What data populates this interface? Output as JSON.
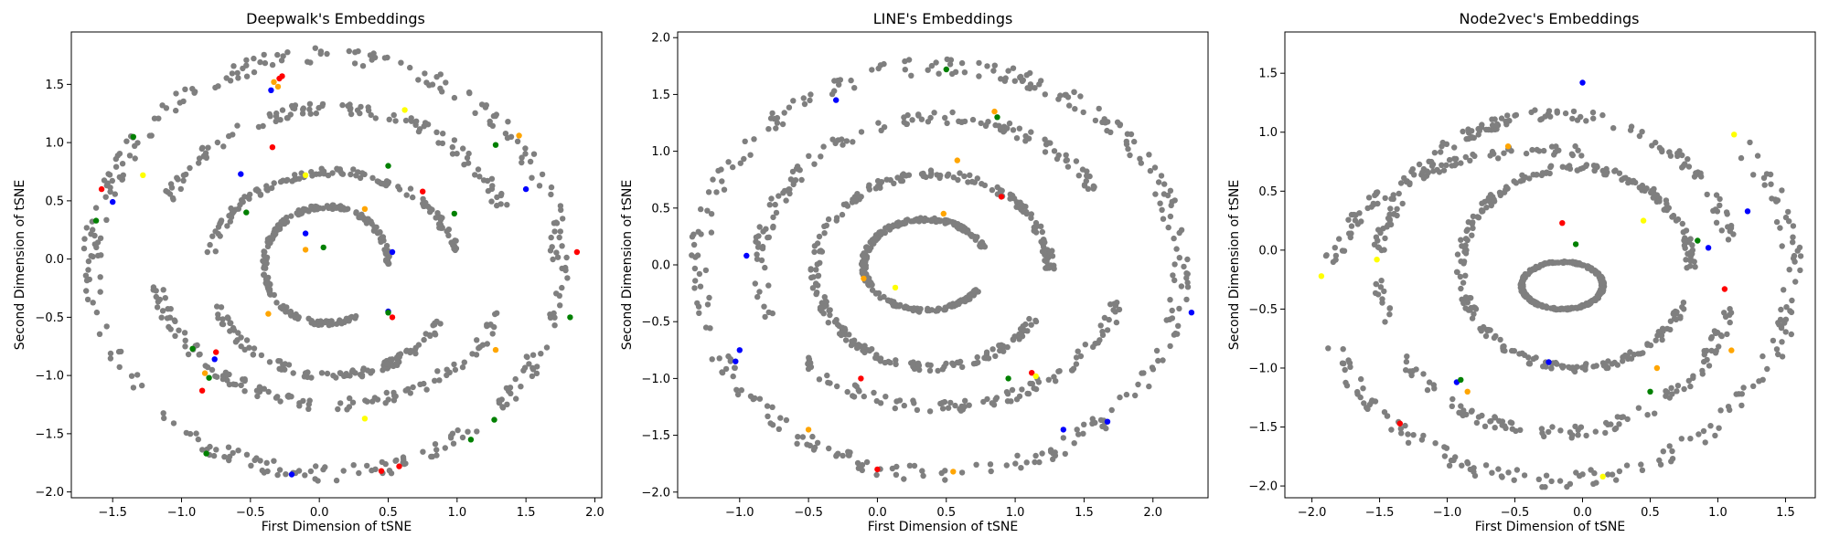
{
  "chart_data": [
    {
      "type": "scatter",
      "title": "Deepwalk's Embeddings",
      "xlabel": "First Dimension of tSNE",
      "ylabel": "Second Dimension of tSNE",
      "xlim": [
        -1.8,
        2.05
      ],
      "ylim": [
        -2.05,
        1.95
      ],
      "xticks": [
        -1.5,
        -1.0,
        -0.5,
        0.0,
        0.5,
        1.0,
        1.5,
        2.0
      ],
      "yticks": [
        -2.0,
        -1.5,
        -1.0,
        -0.5,
        0.0,
        0.5,
        1.0,
        1.5
      ],
      "xtick_labels": [
        "−1.5",
        "−1.0",
        "−0.5",
        "0.0",
        "0.5",
        "1.0",
        "1.5",
        "2.0"
      ],
      "ytick_labels": [
        "−2.0",
        "−1.5",
        "−1.0",
        "−0.5",
        "0.0",
        "0.5",
        "1.0",
        "1.5"
      ],
      "grid": false,
      "base_color": "#7f7f7f",
      "gray_strands": [
        {
          "cx": 0.05,
          "cy": -0.05,
          "r": 1.85,
          "a0": 0,
          "a1": 360,
          "rx": 1.7,
          "ry": 1.8
        },
        {
          "cx": 0.1,
          "cy": 0.0,
          "r": 1.35,
          "a0": 20,
          "a1": 160,
          "rx": 1.3,
          "ry": 1.3
        },
        {
          "cx": 0.1,
          "cy": 0.0,
          "r": 1.35,
          "a0": 190,
          "a1": 340,
          "rx": 1.3,
          "ry": 1.25
        },
        {
          "cx": 0.1,
          "cy": -0.1,
          "r": 0.9,
          "a0": 10,
          "a1": 170,
          "rx": 0.9,
          "ry": 0.85
        },
        {
          "cx": 0.1,
          "cy": -0.1,
          "r": 0.9,
          "a0": 200,
          "a1": 330,
          "rx": 0.9,
          "ry": 0.9
        },
        {
          "cx": 0.05,
          "cy": -0.05,
          "r": 0.45,
          "a0": 0,
          "a1": 300,
          "rx": 0.45,
          "ry": 0.5
        }
      ],
      "colored_points": [
        {
          "x": -1.28,
          "y": 0.72,
          "color": "#ffff00"
        },
        {
          "x": -1.5,
          "y": 0.49,
          "color": "#0000ff"
        },
        {
          "x": -1.62,
          "y": 0.33,
          "color": "#008000"
        },
        {
          "x": -1.58,
          "y": 0.6,
          "color": "#ff0000"
        },
        {
          "x": -1.35,
          "y": 1.05,
          "color": "#008000"
        },
        {
          "x": -0.33,
          "y": 1.52,
          "color": "#ffa500"
        },
        {
          "x": -0.3,
          "y": 1.48,
          "color": "#ffa500"
        },
        {
          "x": -0.29,
          "y": 1.55,
          "color": "#ff0000"
        },
        {
          "x": -0.27,
          "y": 1.57,
          "color": "#ff0000"
        },
        {
          "x": -0.35,
          "y": 1.45,
          "color": "#0000ff"
        },
        {
          "x": -0.34,
          "y": 0.96,
          "color": "#ff0000"
        },
        {
          "x": -0.57,
          "y": 0.73,
          "color": "#0000ff"
        },
        {
          "x": -0.1,
          "y": 0.72,
          "color": "#ffff00"
        },
        {
          "x": 0.62,
          "y": 1.28,
          "color": "#ffff00"
        },
        {
          "x": 1.45,
          "y": 1.06,
          "color": "#ffa500"
        },
        {
          "x": 1.28,
          "y": 0.98,
          "color": "#008000"
        },
        {
          "x": 1.5,
          "y": 0.6,
          "color": "#0000ff"
        },
        {
          "x": 1.87,
          "y": 0.06,
          "color": "#ff0000"
        },
        {
          "x": 1.82,
          "y": -0.5,
          "color": "#008000"
        },
        {
          "x": 0.5,
          "y": 0.8,
          "color": "#008000"
        },
        {
          "x": 0.75,
          "y": 0.58,
          "color": "#ff0000"
        },
        {
          "x": 0.98,
          "y": 0.39,
          "color": "#008000"
        },
        {
          "x": 0.33,
          "y": 0.43,
          "color": "#ffa500"
        },
        {
          "x": -0.53,
          "y": 0.4,
          "color": "#008000"
        },
        {
          "x": -0.1,
          "y": 0.22,
          "color": "#0000ff"
        },
        {
          "x": -0.1,
          "y": 0.08,
          "color": "#ffa500"
        },
        {
          "x": 0.03,
          "y": 0.1,
          "color": "#008000"
        },
        {
          "x": 0.53,
          "y": 0.06,
          "color": "#0000ff"
        },
        {
          "x": 0.5,
          "y": -0.45,
          "color": "#0000ff"
        },
        {
          "x": 0.53,
          "y": -0.5,
          "color": "#ff0000"
        },
        {
          "x": 0.5,
          "y": -0.46,
          "color": "#008000"
        },
        {
          "x": -0.37,
          "y": -0.47,
          "color": "#ffa500"
        },
        {
          "x": -0.92,
          "y": -0.77,
          "color": "#008000"
        },
        {
          "x": -0.75,
          "y": -0.8,
          "color": "#ff0000"
        },
        {
          "x": -0.76,
          "y": -0.86,
          "color": "#0000ff"
        },
        {
          "x": -0.83,
          "y": -0.98,
          "color": "#ffa500"
        },
        {
          "x": -0.8,
          "y": -1.02,
          "color": "#008000"
        },
        {
          "x": -0.85,
          "y": -1.13,
          "color": "#ff0000"
        },
        {
          "x": -0.82,
          "y": -1.67,
          "color": "#008000"
        },
        {
          "x": -0.2,
          "y": -1.85,
          "color": "#0000ff"
        },
        {
          "x": 0.33,
          "y": -1.37,
          "color": "#ffff00"
        },
        {
          "x": 0.45,
          "y": -1.82,
          "color": "#ff0000"
        },
        {
          "x": 0.58,
          "y": -1.78,
          "color": "#ff0000"
        },
        {
          "x": 1.1,
          "y": -1.55,
          "color": "#008000"
        },
        {
          "x": 1.27,
          "y": -1.38,
          "color": "#008000"
        },
        {
          "x": 1.28,
          "y": -0.78,
          "color": "#ffa500"
        }
      ]
    },
    {
      "type": "scatter",
      "title": "LINE's Embeddings",
      "xlabel": "First Dimension of tSNE",
      "ylabel": "Second Dimension of tSNE",
      "xlim": [
        -1.45,
        2.4
      ],
      "ylim": [
        -2.05,
        2.05
      ],
      "xticks": [
        -1.0,
        -0.5,
        0.0,
        0.5,
        1.0,
        1.5,
        2.0
      ],
      "yticks": [
        -2.0,
        -1.5,
        -1.0,
        -0.5,
        0.0,
        0.5,
        1.0,
        1.5,
        2.0
      ],
      "xtick_labels": [
        "−1.0",
        "−0.5",
        "0.0",
        "0.5",
        "1.0",
        "1.5",
        "2.0"
      ],
      "ytick_labels": [
        "−2.0",
        "−1.5",
        "−1.0",
        "−0.5",
        "0.0",
        "0.5",
        "1.0",
        "1.5",
        "2.0"
      ],
      "grid": false,
      "base_color": "#7f7f7f",
      "gray_strands": [
        {
          "cx": 0.45,
          "cy": -0.05,
          "r": 1.8,
          "a0": 0,
          "a1": 360,
          "rx": 1.75,
          "ry": 1.8
        },
        {
          "cx": 0.45,
          "cy": 0.0,
          "r": 1.3,
          "a0": 30,
          "a1": 200,
          "rx": 1.3,
          "ry": 1.3
        },
        {
          "cx": 0.45,
          "cy": 0.0,
          "r": 1.3,
          "a0": 220,
          "a1": 350,
          "rx": 1.35,
          "ry": 1.25
        },
        {
          "cx": 0.4,
          "cy": -0.05,
          "r": 0.85,
          "a0": 0,
          "a1": 330,
          "rx": 0.85,
          "ry": 0.85
        },
        {
          "cx": 0.35,
          "cy": 0.0,
          "r": 0.4,
          "a0": 20,
          "a1": 330,
          "rx": 0.45,
          "ry": 0.4
        }
      ],
      "colored_points": [
        {
          "x": 0.5,
          "y": 1.72,
          "color": "#008000"
        },
        {
          "x": -0.3,
          "y": 1.45,
          "color": "#0000ff"
        },
        {
          "x": 0.85,
          "y": 1.35,
          "color": "#ffa500"
        },
        {
          "x": 0.87,
          "y": 1.3,
          "color": "#008000"
        },
        {
          "x": 0.58,
          "y": 0.92,
          "color": "#ffa500"
        },
        {
          "x": 0.9,
          "y": 0.6,
          "color": "#ff0000"
        },
        {
          "x": 0.48,
          "y": 0.45,
          "color": "#ffa500"
        },
        {
          "x": -0.95,
          "y": 0.08,
          "color": "#0000ff"
        },
        {
          "x": -0.1,
          "y": -0.12,
          "color": "#ffa500"
        },
        {
          "x": 0.13,
          "y": -0.2,
          "color": "#ffff00"
        },
        {
          "x": -1.0,
          "y": -0.75,
          "color": "#0000ff"
        },
        {
          "x": -1.03,
          "y": -0.85,
          "color": "#0000ff"
        },
        {
          "x": -0.5,
          "y": -1.45,
          "color": "#ffa500"
        },
        {
          "x": -0.12,
          "y": -1.0,
          "color": "#ff0000"
        },
        {
          "x": 0.95,
          "y": -1.0,
          "color": "#008000"
        },
        {
          "x": 1.12,
          "y": -0.95,
          "color": "#ff0000"
        },
        {
          "x": 1.15,
          "y": -0.98,
          "color": "#ffff00"
        },
        {
          "x": 1.35,
          "y": -1.45,
          "color": "#0000ff"
        },
        {
          "x": 1.67,
          "y": -1.38,
          "color": "#0000ff"
        },
        {
          "x": 2.28,
          "y": -0.42,
          "color": "#0000ff"
        },
        {
          "x": 0.55,
          "y": -1.82,
          "color": "#ffa500"
        },
        {
          "x": 0.0,
          "y": -1.8,
          "color": "#ff0000"
        }
      ]
    },
    {
      "type": "scatter",
      "title": "Node2vec's Embeddings",
      "xlabel": "First Dimension of tSNE",
      "ylabel": "Second Dimension of tSNE",
      "xlim": [
        -2.2,
        1.72
      ],
      "ylim": [
        -2.1,
        1.85
      ],
      "xticks": [
        -2.0,
        -1.5,
        -1.0,
        -0.5,
        0.0,
        0.5,
        1.0,
        1.5
      ],
      "yticks": [
        -2.0,
        -1.5,
        -1.0,
        -0.5,
        0.0,
        0.5,
        1.0,
        1.5
      ],
      "xtick_labels": [
        "−2.0",
        "−1.5",
        "−1.0",
        "−0.5",
        "0.0",
        "0.5",
        "1.0",
        "1.5"
      ],
      "ytick_labels": [
        "−2.0",
        "−1.5",
        "−1.0",
        "−0.5",
        "0.0",
        "0.5",
        "1.0",
        "1.5"
      ],
      "grid": false,
      "base_color": "#7f7f7f",
      "gray_strands": [
        {
          "cx": -0.2,
          "cy": -0.2,
          "r": 1.75,
          "a0": 200,
          "a1": 400,
          "rx": 1.75,
          "ry": 1.75
        },
        {
          "cx": -0.25,
          "cy": -0.2,
          "r": 1.75,
          "a0": 80,
          "a1": 175,
          "rx": 1.6,
          "ry": 1.05
        },
        {
          "cx": -0.2,
          "cy": -0.15,
          "r": 1.3,
          "a0": 10,
          "a1": 200,
          "rx": 1.3,
          "ry": 1.3
        },
        {
          "cx": -0.2,
          "cy": -0.25,
          "r": 1.3,
          "a0": 210,
          "a1": 350,
          "rx": 1.3,
          "ry": 1.3
        },
        {
          "cx": -0.05,
          "cy": -0.15,
          "r": 0.85,
          "a0": 0,
          "a1": 340,
          "rx": 0.85,
          "ry": 0.85
        },
        {
          "cx": -0.15,
          "cy": -0.3,
          "r": 0.35,
          "a0": 0,
          "a1": 360,
          "rx": 0.3,
          "ry": 0.2
        }
      ],
      "colored_points": [
        {
          "x": -1.93,
          "y": -0.22,
          "color": "#ffff00"
        },
        {
          "x": -1.52,
          "y": -0.08,
          "color": "#ffff00"
        },
        {
          "x": -1.35,
          "y": -1.47,
          "color": "#ff0000"
        },
        {
          "x": -0.93,
          "y": -1.12,
          "color": "#0000ff"
        },
        {
          "x": -0.9,
          "y": -1.1,
          "color": "#008000"
        },
        {
          "x": -0.25,
          "y": -0.95,
          "color": "#0000ff"
        },
        {
          "x": 0.15,
          "y": -1.92,
          "color": "#ffff00"
        },
        {
          "x": 0.5,
          "y": -1.2,
          "color": "#008000"
        },
        {
          "x": 1.05,
          "y": -0.33,
          "color": "#ff0000"
        },
        {
          "x": 1.22,
          "y": 0.33,
          "color": "#0000ff"
        },
        {
          "x": 1.12,
          "y": 0.98,
          "color": "#ffff00"
        },
        {
          "x": 0.45,
          "y": 0.25,
          "color": "#ffff00"
        },
        {
          "x": 0.85,
          "y": 0.08,
          "color": "#008000"
        },
        {
          "x": 0.93,
          "y": 0.02,
          "color": "#0000ff"
        },
        {
          "x": -0.15,
          "y": 0.23,
          "color": "#ff0000"
        },
        {
          "x": -0.05,
          "y": 0.05,
          "color": "#008000"
        },
        {
          "x": -0.55,
          "y": 0.88,
          "color": "#ffa500"
        },
        {
          "x": 0.0,
          "y": 1.42,
          "color": "#0000ff"
        },
        {
          "x": 1.1,
          "y": -0.85,
          "color": "#ffa500"
        },
        {
          "x": 0.55,
          "y": -1.0,
          "color": "#ffa500"
        },
        {
          "x": -0.85,
          "y": -1.2,
          "color": "#ffa500"
        }
      ]
    }
  ]
}
